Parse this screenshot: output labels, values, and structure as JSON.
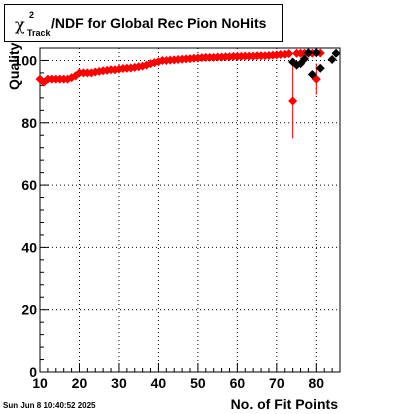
{
  "chart_data": {
    "type": "scatter",
    "title": "/NDF for Global Rec Pion NoHits",
    "title_symbol": "χ",
    "title_sup": "2",
    "title_sub": "Track",
    "xlabel": "No. of Fit Points",
    "ylabel": "Quality",
    "xlim": [
      10,
      86
    ],
    "ylim": [
      0,
      104
    ],
    "x_ticks": [
      10,
      20,
      30,
      40,
      50,
      60,
      70,
      80
    ],
    "y_ticks": [
      0,
      20,
      40,
      60,
      80,
      100
    ],
    "grid": true,
    "series": [
      {
        "color": "#ff0000",
        "points": [
          {
            "x": 10,
            "y": 94
          },
          {
            "x": 11,
            "y": 93
          },
          {
            "x": 12,
            "y": 94
          },
          {
            "x": 13,
            "y": 94
          },
          {
            "x": 14,
            "y": 94
          },
          {
            "x": 15,
            "y": 94
          },
          {
            "x": 16,
            "y": 94
          },
          {
            "x": 17,
            "y": 94
          },
          {
            "x": 18,
            "y": 94.5
          },
          {
            "x": 19,
            "y": 95
          },
          {
            "x": 20,
            "y": 96
          },
          {
            "x": 21,
            "y": 96
          },
          {
            "x": 22,
            "y": 96
          },
          {
            "x": 23,
            "y": 96
          },
          {
            "x": 24,
            "y": 96.3
          },
          {
            "x": 25,
            "y": 96.5
          },
          {
            "x": 26,
            "y": 96.7
          },
          {
            "x": 27,
            "y": 96.8
          },
          {
            "x": 28,
            "y": 97
          },
          {
            "x": 29,
            "y": 97
          },
          {
            "x": 30,
            "y": 97.2
          },
          {
            "x": 31,
            "y": 97.4
          },
          {
            "x": 32,
            "y": 97.5
          },
          {
            "x": 33,
            "y": 97.6
          },
          {
            "x": 34,
            "y": 97.8
          },
          {
            "x": 35,
            "y": 98
          },
          {
            "x": 36,
            "y": 98.2
          },
          {
            "x": 37,
            "y": 98.5
          },
          {
            "x": 38,
            "y": 99
          },
          {
            "x": 39,
            "y": 99.3
          },
          {
            "x": 40,
            "y": 99.6
          },
          {
            "x": 41,
            "y": 100
          },
          {
            "x": 42,
            "y": 100
          },
          {
            "x": 43,
            "y": 100.1
          },
          {
            "x": 44,
            "y": 100.2
          },
          {
            "x": 45,
            "y": 100.3
          },
          {
            "x": 46,
            "y": 100.4
          },
          {
            "x": 47,
            "y": 100.5
          },
          {
            "x": 48,
            "y": 100.6
          },
          {
            "x": 49,
            "y": 100.7
          },
          {
            "x": 50,
            "y": 100.8
          },
          {
            "x": 51,
            "y": 100.9
          },
          {
            "x": 52,
            "y": 101
          },
          {
            "x": 53,
            "y": 101
          },
          {
            "x": 54,
            "y": 101
          },
          {
            "x": 55,
            "y": 101.1
          },
          {
            "x": 56,
            "y": 101.1
          },
          {
            "x": 57,
            "y": 101.2
          },
          {
            "x": 58,
            "y": 101.2
          },
          {
            "x": 59,
            "y": 101.3
          },
          {
            "x": 60,
            "y": 101.3
          },
          {
            "x": 61,
            "y": 101.3
          },
          {
            "x": 62,
            "y": 101.4
          },
          {
            "x": 63,
            "y": 101.4
          },
          {
            "x": 64,
            "y": 101.4
          },
          {
            "x": 65,
            "y": 101.5
          },
          {
            "x": 66,
            "y": 101.5
          },
          {
            "x": 67,
            "y": 101.5
          },
          {
            "x": 68,
            "y": 101.6
          },
          {
            "x": 69,
            "y": 101.7
          },
          {
            "x": 70,
            "y": 101.8
          },
          {
            "x": 71,
            "y": 101.9
          },
          {
            "x": 72,
            "y": 102
          },
          {
            "x": 73,
            "y": 102.2
          },
          {
            "x": 74,
            "y": 87,
            "err": 12
          },
          {
            "x": 75,
            "y": 102.3
          },
          {
            "x": 76,
            "y": 102.3
          },
          {
            "x": 77,
            "y": 102.3
          },
          {
            "x": 78,
            "y": 102.3
          },
          {
            "x": 79,
            "y": 102.3
          },
          {
            "x": 80,
            "y": 94,
            "err": 5
          },
          {
            "x": 81,
            "y": 102.4
          }
        ]
      },
      {
        "color": "#000000",
        "points": [
          {
            "x": 74,
            "y": 99.5
          },
          {
            "x": 75,
            "y": 98.5
          },
          {
            "x": 76,
            "y": 99
          },
          {
            "x": 77,
            "y": 100.5
          },
          {
            "x": 78,
            "y": 102.5
          },
          {
            "x": 79,
            "y": 95.5
          },
          {
            "x": 80,
            "y": 102.5
          },
          {
            "x": 81,
            "y": 97.5
          },
          {
            "x": 84,
            "y": 100.3
          },
          {
            "x": 85,
            "y": 102.3
          }
        ]
      }
    ]
  },
  "footer": {
    "timestamp": "Sun Jun  8 10:40:52 2025"
  }
}
